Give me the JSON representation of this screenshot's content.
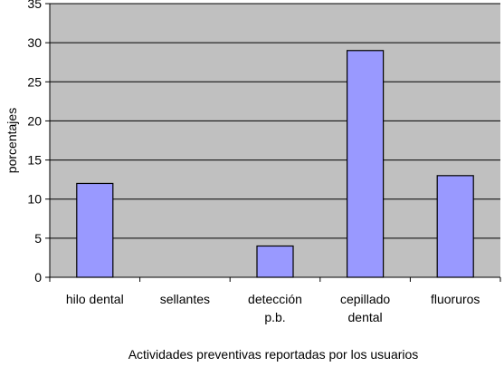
{
  "chart_data": {
    "type": "bar",
    "categories": [
      "hilo dental",
      "sellantes",
      "detección p.b.",
      "cepillado dental",
      "fluoruros"
    ],
    "category_lines": [
      [
        "hilo dental"
      ],
      [
        "sellantes"
      ],
      [
        "detección",
        "p.b."
      ],
      [
        "cepillado",
        "dental"
      ],
      [
        "fluoruros"
      ]
    ],
    "values": [
      12,
      0,
      4,
      29,
      13
    ],
    "xlabel": "Actividades preventivas reportadas por los usuarios",
    "ylabel": "porcentajes",
    "ylim": [
      0,
      35
    ],
    "yticks": [
      "0",
      "5",
      "10",
      "15",
      "20",
      "25",
      "30",
      "35"
    ],
    "grid": true,
    "legend": "none",
    "colors": {
      "plot_background": "#c0c0c0",
      "bar_fill": "#9999ff",
      "bar_stroke": "#000000",
      "grid": "#000000"
    }
  }
}
